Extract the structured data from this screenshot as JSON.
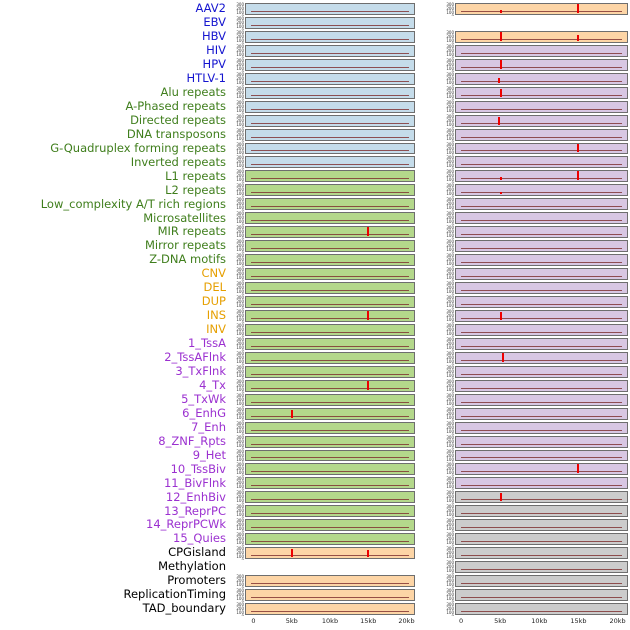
{
  "colors": {
    "label_blue": "#1515CF",
    "label_green": "#3F7E1C",
    "label_orange": "#E69F00",
    "label_purple": "#9B30D0",
    "label_black": "#000000",
    "panel_blue": "#C5DCEA",
    "panel_green": "#B4D88B",
    "panel_peach": "#FDD5A6",
    "panel_purple": "#D8C7E3",
    "panel_gray": "#CCCCCC",
    "spike_red": "#EE0000"
  },
  "chart_data": {
    "type": "line",
    "layout": "two-column profile plot, 44 genomic feature tracks, red enrichment spikes over flat baseline",
    "x_ticks": [
      "0",
      "5kb",
      "10kb",
      "15kb",
      "20kb"
    ],
    "x_range_kb": [
      0,
      20
    ],
    "ytick_default": [
      "300",
      "200",
      "100",
      "0"
    ],
    "tracks": [
      {
        "label": "AAV2",
        "group": "blue",
        "left": {
          "bg": "blue",
          "spikes": []
        },
        "right": {
          "bg": "peach",
          "spikes": [
            {
              "kb": 5,
              "h": 0.3
            },
            {
              "kb": 15,
              "h": 0.95
            }
          ]
        }
      },
      {
        "label": "EBV",
        "group": "blue",
        "left": {
          "bg": "blue",
          "spikes": []
        },
        "right": {
          "bg": "none",
          "spikes": []
        }
      },
      {
        "label": "HBV",
        "group": "blue",
        "left": {
          "bg": "blue",
          "spikes": []
        },
        "right": {
          "bg": "peach",
          "spikes": [
            {
              "kb": 5,
              "h": 0.95
            },
            {
              "kb": 15,
              "h": 0.6
            }
          ]
        }
      },
      {
        "label": "HIV",
        "group": "blue",
        "left": {
          "bg": "blue",
          "spikes": []
        },
        "right": {
          "bg": "purple",
          "spikes": []
        }
      },
      {
        "label": "HPV",
        "group": "blue",
        "left": {
          "bg": "blue",
          "spikes": []
        },
        "right": {
          "bg": "purple",
          "spikes": [
            {
              "kb": 5,
              "h": 0.85
            }
          ]
        }
      },
      {
        "label": "HTLV-1",
        "group": "blue",
        "left": {
          "bg": "blue",
          "spikes": []
        },
        "right": {
          "bg": "purple",
          "spikes": [
            {
              "kb": 4.8,
              "h": 0.45
            }
          ]
        }
      },
      {
        "label": "Alu repeats",
        "group": "green",
        "left": {
          "bg": "blue",
          "spikes": []
        },
        "right": {
          "bg": "purple",
          "spikes": [
            {
              "kb": 5,
              "h": 0.8
            }
          ]
        }
      },
      {
        "label": "A-Phased repeats",
        "group": "green",
        "left": {
          "bg": "blue",
          "spikes": []
        },
        "right": {
          "bg": "purple",
          "spikes": []
        }
      },
      {
        "label": "Directed repeats",
        "group": "green",
        "left": {
          "bg": "blue",
          "spikes": []
        },
        "right": {
          "bg": "purple",
          "spikes": [
            {
              "kb": 4.8,
              "h": 0.75
            }
          ]
        }
      },
      {
        "label": "DNA transposons",
        "group": "green",
        "left": {
          "bg": "blue",
          "spikes": []
        },
        "right": {
          "bg": "purple",
          "spikes": []
        }
      },
      {
        "label": "G-Quadruplex forming repeats",
        "group": "green",
        "left": {
          "bg": "blue",
          "spikes": []
        },
        "right": {
          "bg": "purple",
          "spikes": [
            {
              "kb": 15,
              "h": 0.95
            }
          ]
        }
      },
      {
        "label": "Inverted repeats",
        "group": "green",
        "left": {
          "bg": "blue",
          "spikes": []
        },
        "right": {
          "bg": "purple",
          "spikes": []
        }
      },
      {
        "label": "L1 repeats",
        "group": "green",
        "left": {
          "bg": "green",
          "spikes": []
        },
        "right": {
          "bg": "purple",
          "spikes": [
            {
              "kb": 5,
              "h": 0.3
            },
            {
              "kb": 15,
              "h": 0.95
            }
          ]
        }
      },
      {
        "label": "L2 repeats",
        "group": "green",
        "left": {
          "bg": "green",
          "spikes": []
        },
        "right": {
          "bg": "purple",
          "spikes": [
            {
              "kb": 5,
              "h": 0.25
            }
          ]
        }
      },
      {
        "label": "Low_complexity A/T rich regions",
        "group": "green",
        "left": {
          "bg": "green",
          "spikes": []
        },
        "right": {
          "bg": "purple",
          "spikes": []
        }
      },
      {
        "label": "Microsatellites",
        "group": "green",
        "left": {
          "bg": "green",
          "spikes": []
        },
        "right": {
          "bg": "purple",
          "spikes": []
        }
      },
      {
        "label": "MIR repeats",
        "group": "green",
        "left": {
          "bg": "green",
          "spikes": [
            {
              "kb": 15,
              "h": 0.9
            }
          ]
        },
        "right": {
          "bg": "purple",
          "spikes": []
        }
      },
      {
        "label": "Mirror repeats",
        "group": "green",
        "left": {
          "bg": "green",
          "spikes": []
        },
        "right": {
          "bg": "purple",
          "spikes": []
        }
      },
      {
        "label": "Z-DNA motifs",
        "group": "green",
        "left": {
          "bg": "green",
          "spikes": []
        },
        "right": {
          "bg": "purple",
          "spikes": []
        }
      },
      {
        "label": "CNV",
        "group": "orange",
        "left": {
          "bg": "green",
          "spikes": []
        },
        "right": {
          "bg": "purple",
          "spikes": []
        }
      },
      {
        "label": "DEL",
        "group": "orange",
        "left": {
          "bg": "green",
          "spikes": []
        },
        "right": {
          "bg": "purple",
          "spikes": []
        }
      },
      {
        "label": "DUP",
        "group": "orange",
        "left": {
          "bg": "green",
          "spikes": []
        },
        "right": {
          "bg": "purple",
          "spikes": []
        }
      },
      {
        "label": "INS",
        "group": "orange",
        "left": {
          "bg": "green",
          "spikes": [
            {
              "kb": 15,
              "h": 0.85
            }
          ]
        },
        "right": {
          "bg": "purple",
          "spikes": [
            {
              "kb": 5,
              "h": 0.8
            }
          ]
        }
      },
      {
        "label": "INV",
        "group": "orange",
        "left": {
          "bg": "green",
          "spikes": []
        },
        "right": {
          "bg": "purple",
          "spikes": []
        }
      },
      {
        "label": "1_TssA",
        "group": "purple",
        "left": {
          "bg": "green",
          "spikes": []
        },
        "right": {
          "bg": "purple",
          "spikes": []
        }
      },
      {
        "label": "2_TssAFlnk",
        "group": "purple",
        "left": {
          "bg": "green",
          "spikes": []
        },
        "right": {
          "bg": "purple",
          "spikes": [
            {
              "kb": 5.3,
              "h": 0.85
            }
          ]
        }
      },
      {
        "label": "3_TxFlnk",
        "group": "purple",
        "left": {
          "bg": "green",
          "spikes": []
        },
        "right": {
          "bg": "purple",
          "spikes": []
        }
      },
      {
        "label": "4_Tx",
        "group": "purple",
        "left": {
          "bg": "green",
          "spikes": [
            {
              "kb": 15,
              "h": 0.85
            }
          ]
        },
        "right": {
          "bg": "purple",
          "spikes": []
        }
      },
      {
        "label": "5_TxWk",
        "group": "purple",
        "left": {
          "bg": "green",
          "spikes": []
        },
        "right": {
          "bg": "purple",
          "spikes": []
        }
      },
      {
        "label": "6_EnhG",
        "group": "purple",
        "left": {
          "bg": "green",
          "spikes": [
            {
              "kb": 5,
              "h": 0.8
            }
          ]
        },
        "right": {
          "bg": "purple",
          "spikes": []
        }
      },
      {
        "label": "7_Enh",
        "group": "purple",
        "left": {
          "bg": "green",
          "spikes": []
        },
        "right": {
          "bg": "purple",
          "spikes": []
        }
      },
      {
        "label": "8_ZNF_Rpts",
        "group": "purple",
        "left": {
          "bg": "green",
          "spikes": []
        },
        "right": {
          "bg": "purple",
          "spikes": []
        }
      },
      {
        "label": "9_Het",
        "group": "purple",
        "left": {
          "bg": "green",
          "spikes": []
        },
        "right": {
          "bg": "purple",
          "spikes": []
        }
      },
      {
        "label": "10_TssBiv",
        "group": "purple",
        "left": {
          "bg": "green",
          "spikes": []
        },
        "right": {
          "bg": "purple",
          "spikes": [
            {
              "kb": 15,
              "h": 0.95
            }
          ]
        }
      },
      {
        "label": "11_BivFlnk",
        "group": "purple",
        "left": {
          "bg": "green",
          "spikes": []
        },
        "right": {
          "bg": "purple",
          "spikes": []
        }
      },
      {
        "label": "12_EnhBiv",
        "group": "purple",
        "left": {
          "bg": "green",
          "spikes": []
        },
        "right": {
          "bg": "gray",
          "spikes": [
            {
              "kb": 5,
              "h": 0.8
            }
          ]
        }
      },
      {
        "label": "13_ReprPC",
        "group": "purple",
        "left": {
          "bg": "green",
          "spikes": []
        },
        "right": {
          "bg": "gray",
          "spikes": []
        }
      },
      {
        "label": "14_ReprPCWk",
        "group": "purple",
        "left": {
          "bg": "green",
          "spikes": []
        },
        "right": {
          "bg": "gray",
          "spikes": []
        }
      },
      {
        "label": "15_Quies",
        "group": "purple",
        "left": {
          "bg": "green",
          "spikes": []
        },
        "right": {
          "bg": "gray",
          "spikes": []
        }
      },
      {
        "label": "CPGisland",
        "group": "black",
        "left": {
          "bg": "peach",
          "spikes": [
            {
              "kb": 5,
              "h": 0.85
            },
            {
              "kb": 15,
              "h": 0.75
            }
          ]
        },
        "right": {
          "bg": "gray",
          "spikes": []
        }
      },
      {
        "label": "Methylation",
        "group": "black",
        "left": {
          "bg": "none",
          "spikes": []
        },
        "right": {
          "bg": "gray",
          "spikes": []
        }
      },
      {
        "label": "Promoters",
        "group": "black",
        "left": {
          "bg": "peach",
          "spikes": []
        },
        "right": {
          "bg": "gray",
          "spikes": []
        }
      },
      {
        "label": "ReplicationTiming",
        "group": "black",
        "left": {
          "bg": "peach",
          "spikes": []
        },
        "right": {
          "bg": "gray",
          "spikes": []
        }
      },
      {
        "label": "TAD_boundary",
        "group": "black",
        "left": {
          "bg": "peach",
          "spikes": []
        },
        "right": {
          "bg": "gray",
          "spikes": []
        }
      }
    ]
  }
}
